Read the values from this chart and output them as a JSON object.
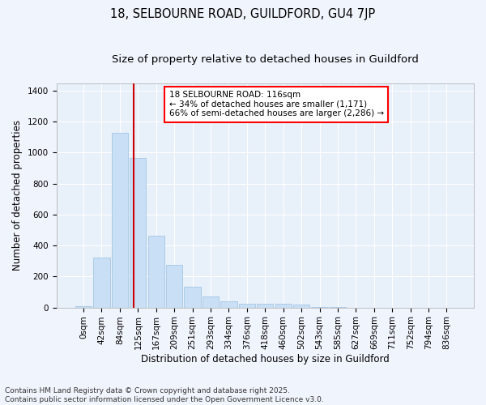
{
  "title1": "18, SELBOURNE ROAD, GUILDFORD, GU4 7JP",
  "title2": "Size of property relative to detached houses in Guildford",
  "xlabel": "Distribution of detached houses by size in Guildford",
  "ylabel": "Number of detached properties",
  "bar_color": "#c8dff5",
  "bar_edgecolor": "#9bbfdf",
  "background_color": "#e8f0fa",
  "grid_color": "#ffffff",
  "fig_color": "#f0f4fc",
  "categories": [
    "0sqm",
    "42sqm",
    "84sqm",
    "125sqm",
    "167sqm",
    "209sqm",
    "251sqm",
    "293sqm",
    "334sqm",
    "376sqm",
    "418sqm",
    "460sqm",
    "502sqm",
    "543sqm",
    "585sqm",
    "627sqm",
    "669sqm",
    "711sqm",
    "752sqm",
    "794sqm",
    "836sqm"
  ],
  "values": [
    10,
    320,
    1130,
    965,
    465,
    275,
    135,
    70,
    40,
    22,
    25,
    22,
    18,
    2,
    1,
    0,
    0,
    0,
    0,
    0,
    0
  ],
  "vline_x": 2.78,
  "vline_color": "#cc0000",
  "annotation_line1": "18 SELBOURNE ROAD: 116sqm",
  "annotation_line2": "← 34% of detached houses are smaller (1,171)",
  "annotation_line3": "66% of semi-detached houses are larger (2,286) →",
  "ylim": [
    0,
    1450
  ],
  "yticks": [
    0,
    200,
    400,
    600,
    800,
    1000,
    1200,
    1400
  ],
  "title_fontsize": 10.5,
  "subtitle_fontsize": 9.5,
  "axis_label_fontsize": 8.5,
  "tick_fontsize": 7.5,
  "annotation_fontsize": 7.5,
  "footer": "Contains HM Land Registry data © Crown copyright and database right 2025.\nContains public sector information licensed under the Open Government Licence v3.0.",
  "footer_fontsize": 6.5
}
